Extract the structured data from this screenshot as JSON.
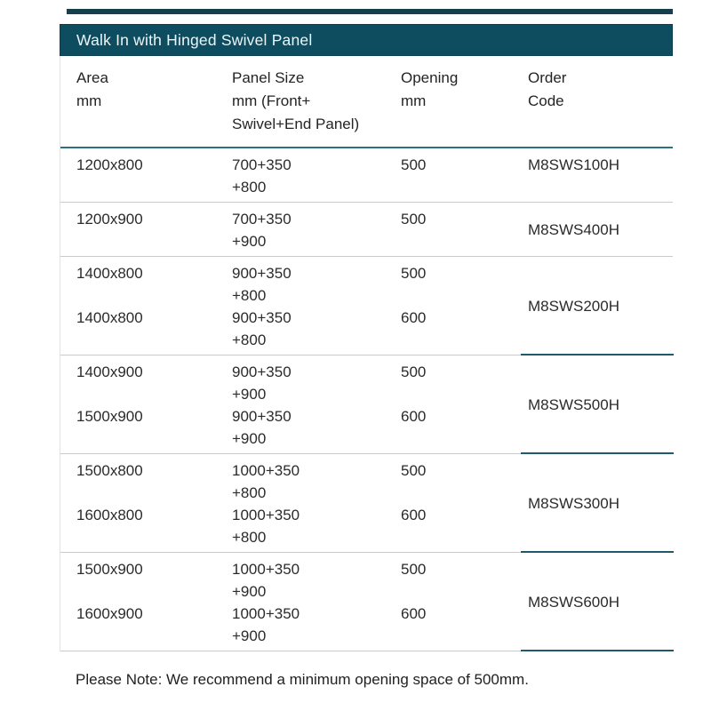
{
  "title_bar": {
    "label": "Walk In with Hinged Swivel Panel"
  },
  "columns": {
    "area": "Area\nmm",
    "panel": "Panel Size\nmm (Front+\nSwivel+End Panel)",
    "opening": "Opening\nmm",
    "order": "Order\nCode"
  },
  "groups": [
    {
      "code": "M8SWS100H",
      "rows": [
        {
          "area": "1200x800",
          "panel": "700+350\n+800",
          "opening": "500"
        }
      ]
    },
    {
      "code": "M8SWS400H",
      "rows": [
        {
          "area": "1200x900",
          "panel": "700+350\n+900",
          "opening": "500"
        }
      ]
    },
    {
      "code": "M8SWS200H",
      "rows": [
        {
          "area": "1400x800",
          "panel": "900+350\n+800",
          "opening": "500"
        },
        {
          "area": "1400x800",
          "panel": "900+350\n+800",
          "opening": "600"
        }
      ]
    },
    {
      "code": "M8SWS500H",
      "rows": [
        {
          "area": "1400x900",
          "panel": "900+350\n+900",
          "opening": "500"
        },
        {
          "area": "1500x900",
          "panel": "900+350\n+900",
          "opening": "600"
        }
      ]
    },
    {
      "code": "M8SWS300H",
      "rows": [
        {
          "area": "1500x800",
          "panel": "1000+350\n+800",
          "opening": "500"
        },
        {
          "area": "1600x800",
          "panel": "1000+350\n+800",
          "opening": "600"
        }
      ]
    },
    {
      "code": "M8SWS600H",
      "rows": [
        {
          "area": "1500x900",
          "panel": "1000+350\n+900",
          "opening": "500"
        },
        {
          "area": "1600x900",
          "panel": "1000+350\n+900",
          "opening": "600"
        }
      ]
    }
  ],
  "footer": {
    "note": "Please Note: We recommend a minimum opening space of 500mm."
  },
  "colors": {
    "title_bar_bg": "#0e4d60",
    "title_text": "#eef5f7",
    "header_rule_teal": "#2f707f",
    "row_separator_gray": "#c7cbcc",
    "order_code_underline_teal": "#1e5a6c",
    "body_text": "#2b2b2b"
  }
}
